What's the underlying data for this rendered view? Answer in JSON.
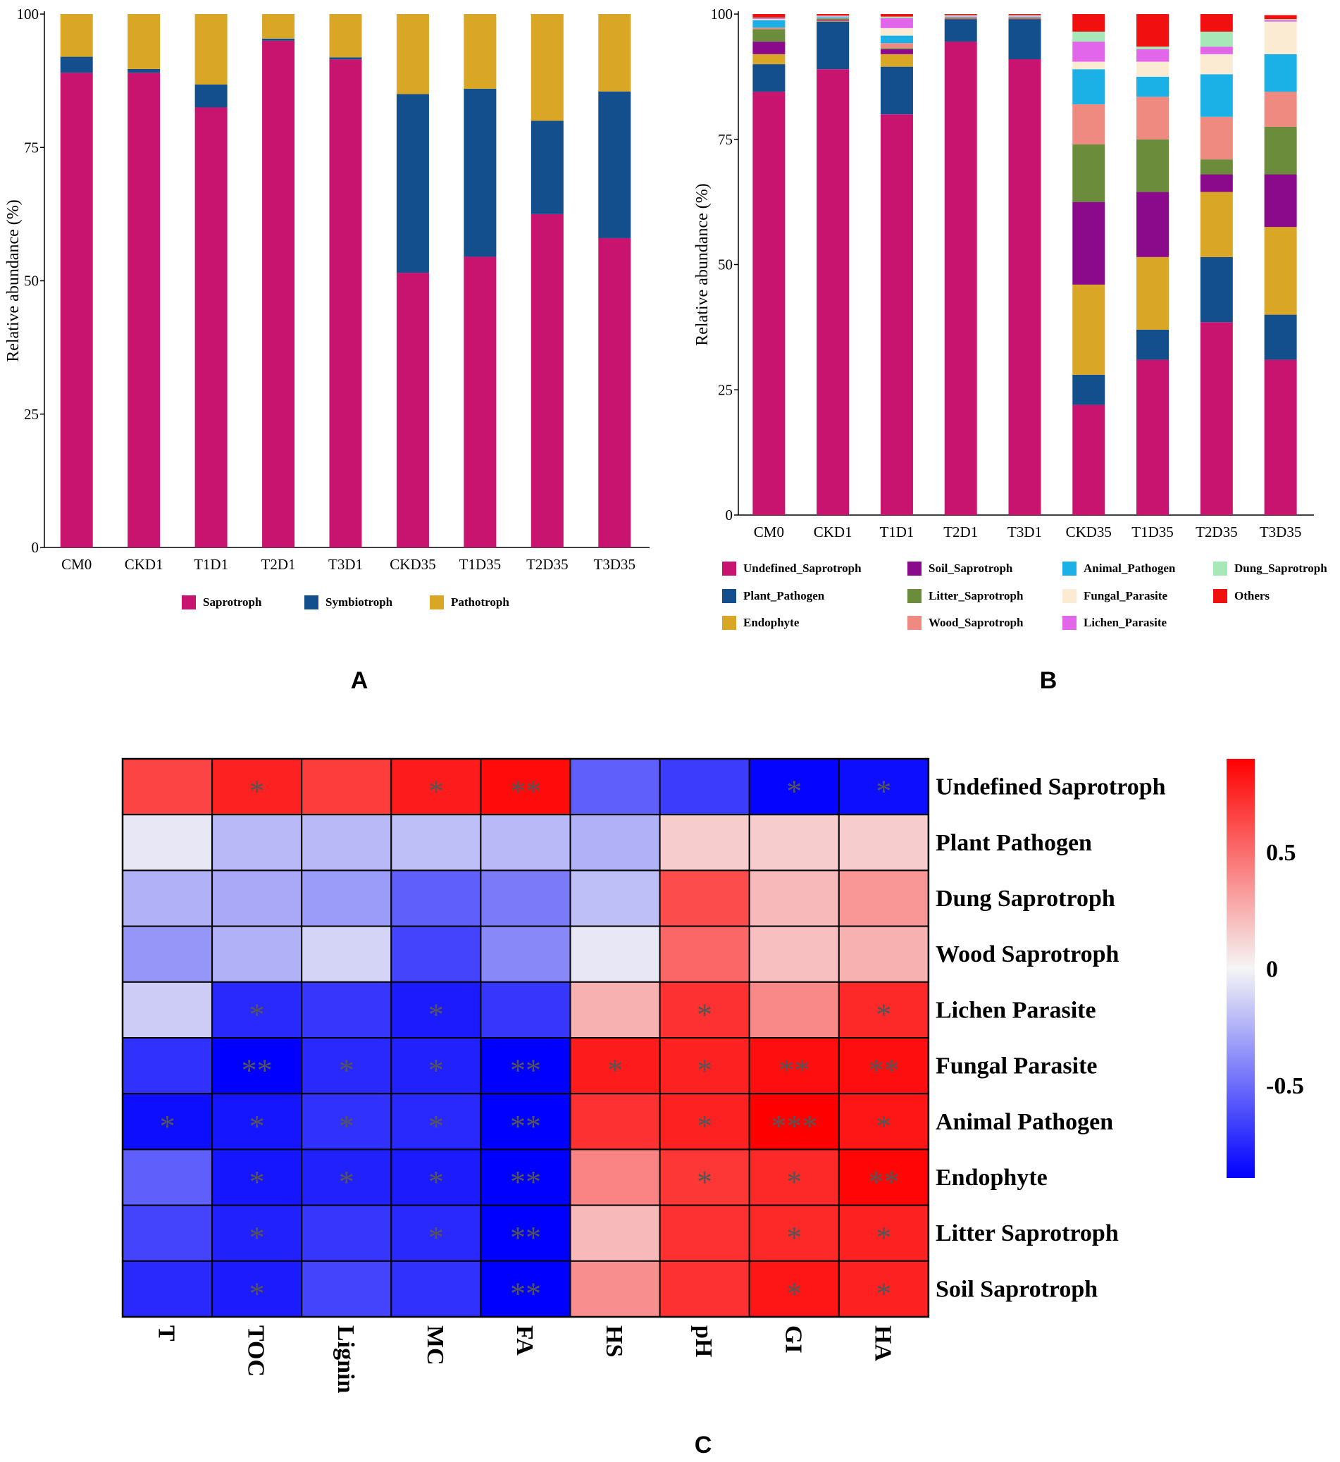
{
  "chart_data": [
    {
      "id": "A",
      "type": "bar",
      "stacked": true,
      "panel_label": "A",
      "ylabel": "Relative abundance (%)",
      "ylim": [
        0,
        100
      ],
      "yticks": [
        0,
        25,
        50,
        75,
        100
      ],
      "categories": [
        "CM0",
        "CKD1",
        "T1D1",
        "T2D1",
        "T3D1",
        "CKD35",
        "T1D35",
        "T2D35",
        "T3D35"
      ],
      "series": [
        {
          "name": "Saprotroph",
          "color": "#C8146E",
          "values": [
            89.0,
            89.0,
            82.5,
            95.0,
            91.5,
            51.5,
            54.5,
            62.5,
            58.0
          ]
        },
        {
          "name": "Symbiotroph",
          "color": "#124F8C",
          "values": [
            3.0,
            0.7,
            4.3,
            0.4,
            0.4,
            33.5,
            31.5,
            17.5,
            27.5
          ]
        },
        {
          "name": "Pathotroph",
          "color": "#DAA626",
          "values": [
            8.0,
            10.3,
            13.2,
            4.6,
            8.1,
            15.0,
            14.0,
            20.0,
            14.5
          ]
        }
      ]
    },
    {
      "id": "B",
      "type": "bar",
      "stacked": true,
      "panel_label": "B",
      "ylabel": "Relative abundance (%)",
      "ylim": [
        0,
        100
      ],
      "yticks": [
        0,
        25,
        50,
        75,
        100
      ],
      "categories": [
        "CM0",
        "CKD1",
        "T1D1",
        "T2D1",
        "T3D1",
        "CKD35",
        "T1D35",
        "T2D35",
        "T3D35"
      ],
      "series": [
        {
          "name": "Undefined_Saprotroph",
          "color": "#C8146E",
          "values": [
            84.5,
            89.0,
            80.0,
            94.5,
            91.0,
            22.0,
            31.0,
            38.5,
            31.0
          ]
        },
        {
          "name": "Plant_Pathogen",
          "color": "#124F8C",
          "values": [
            5.5,
            9.5,
            9.5,
            4.5,
            8.0,
            6.0,
            6.0,
            13.0,
            9.0
          ]
        },
        {
          "name": "Endophyte",
          "color": "#DAA626",
          "values": [
            2.0,
            0.2,
            2.5,
            0.1,
            0.1,
            18.0,
            14.5,
            13.0,
            17.5
          ]
        },
        {
          "name": "Soil_Saprotroph",
          "color": "#8B0A8B",
          "values": [
            2.5,
            0.2,
            1.0,
            0.1,
            0.1,
            16.5,
            13.0,
            3.5,
            10.5
          ]
        },
        {
          "name": "Litter_Saprotroph",
          "color": "#6B8C3A",
          "values": [
            2.5,
            0.2,
            0.2,
            0.1,
            0.1,
            11.5,
            10.5,
            3.0,
            9.5
          ]
        },
        {
          "name": "Wood_Saprotroph",
          "color": "#EE8A80",
          "values": [
            0.3,
            0.1,
            1.0,
            0.1,
            0.1,
            8.0,
            8.5,
            8.5,
            7.0
          ]
        },
        {
          "name": "Animal_Pathogen",
          "color": "#1BB0E6",
          "values": [
            1.5,
            0.2,
            1.5,
            0.1,
            0.1,
            7.0,
            4.0,
            8.5,
            7.5
          ]
        },
        {
          "name": "Fungal_Parasite",
          "color": "#FBEBD2",
          "values": [
            0.2,
            0.1,
            1.5,
            0.1,
            0.1,
            1.5,
            3.0,
            4.0,
            6.5
          ]
        },
        {
          "name": "Lichen_Parasite",
          "color": "#E266EA",
          "values": [
            0.2,
            0.1,
            2.0,
            0.1,
            0.1,
            4.0,
            2.5,
            1.5,
            0.3
          ]
        },
        {
          "name": "Dung_Saprotroph",
          "color": "#A6E8B8",
          "values": [
            0.1,
            0.1,
            0.3,
            0.1,
            0.1,
            2.0,
            0.5,
            3.0,
            0.2
          ]
        },
        {
          "name": "Others",
          "color": "#F20F0F",
          "values": [
            0.7,
            0.3,
            0.5,
            0.2,
            0.2,
            3.5,
            6.5,
            3.5,
            0.8
          ]
        }
      ]
    },
    {
      "id": "C",
      "type": "heatmap",
      "panel_label": "C",
      "rows": [
        "Undefined  Saprotroph",
        "Plant  Pathogen",
        "Dung Saprotroph",
        "Wood  Saprotroph",
        "Lichen Parasite",
        "Fungal  Parasite",
        "Animal Pathogen",
        "Endophyte",
        "Litter Saprotroph",
        "Soil Saprotroph"
      ],
      "columns": [
        "T",
        "TOC",
        "Lignin",
        "MC",
        "FA",
        "HS",
        "pH",
        "GI",
        "HA"
      ],
      "values": [
        [
          0.65,
          0.78,
          0.68,
          0.8,
          0.86,
          -0.55,
          -0.68,
          -0.88,
          -0.85
        ],
        [
          -0.05,
          -0.22,
          -0.22,
          -0.2,
          -0.22,
          -0.25,
          0.15,
          0.15,
          0.15
        ],
        [
          -0.25,
          -0.28,
          -0.33,
          -0.55,
          -0.45,
          -0.2,
          0.62,
          0.22,
          0.35
        ],
        [
          -0.35,
          -0.25,
          -0.12,
          -0.65,
          -0.4,
          -0.05,
          0.52,
          0.2,
          0.25
        ],
        [
          -0.15,
          -0.75,
          -0.7,
          -0.8,
          -0.7,
          0.25,
          0.72,
          0.4,
          0.75
        ],
        [
          -0.72,
          -0.92,
          -0.75,
          -0.78,
          -0.9,
          0.8,
          0.78,
          0.85,
          0.85
        ],
        [
          -0.85,
          -0.82,
          -0.72,
          -0.75,
          -0.92,
          0.72,
          0.78,
          0.95,
          0.82
        ],
        [
          -0.55,
          -0.82,
          -0.78,
          -0.8,
          -0.9,
          0.42,
          0.7,
          0.75,
          0.88
        ],
        [
          -0.65,
          -0.78,
          -0.7,
          -0.75,
          -0.92,
          0.22,
          0.72,
          0.75,
          0.78
        ],
        [
          -0.75,
          -0.8,
          -0.65,
          -0.72,
          -0.92,
          0.38,
          0.72,
          0.82,
          0.78
        ]
      ],
      "significance": [
        [
          "",
          "*",
          "",
          "*",
          "**",
          "",
          "",
          "*",
          "*"
        ],
        [
          "",
          "",
          "",
          "",
          "",
          "",
          "",
          "",
          ""
        ],
        [
          "",
          "",
          "",
          "",
          "",
          "",
          "",
          "",
          ""
        ],
        [
          "",
          "",
          "",
          "",
          "",
          "",
          "",
          "",
          ""
        ],
        [
          "",
          "*",
          "",
          "*",
          "",
          "",
          "*",
          "",
          "*"
        ],
        [
          "",
          "**",
          "*",
          "*",
          "**",
          "*",
          "*",
          "**",
          "**"
        ],
        [
          "*",
          "*",
          "*",
          "*",
          "**",
          "",
          "*",
          "***",
          "*"
        ],
        [
          "",
          "*",
          "*",
          "*",
          "**",
          "",
          "*",
          "*",
          "**"
        ],
        [
          "",
          "*",
          "",
          "*",
          "**",
          "",
          "",
          "*",
          "*"
        ],
        [
          "",
          "*",
          "",
          "",
          "**",
          "",
          "",
          "*",
          "*"
        ]
      ],
      "colorbar": {
        "min": -0.9,
        "max": 0.9,
        "ticks": [
          0.5,
          0,
          -0.5
        ],
        "tick_labels": [
          "0.5",
          "0",
          "-0.5"
        ],
        "low_color": "#0000FF",
        "mid_color": "#F5F5F5",
        "high_color": "#FF0000"
      }
    }
  ]
}
